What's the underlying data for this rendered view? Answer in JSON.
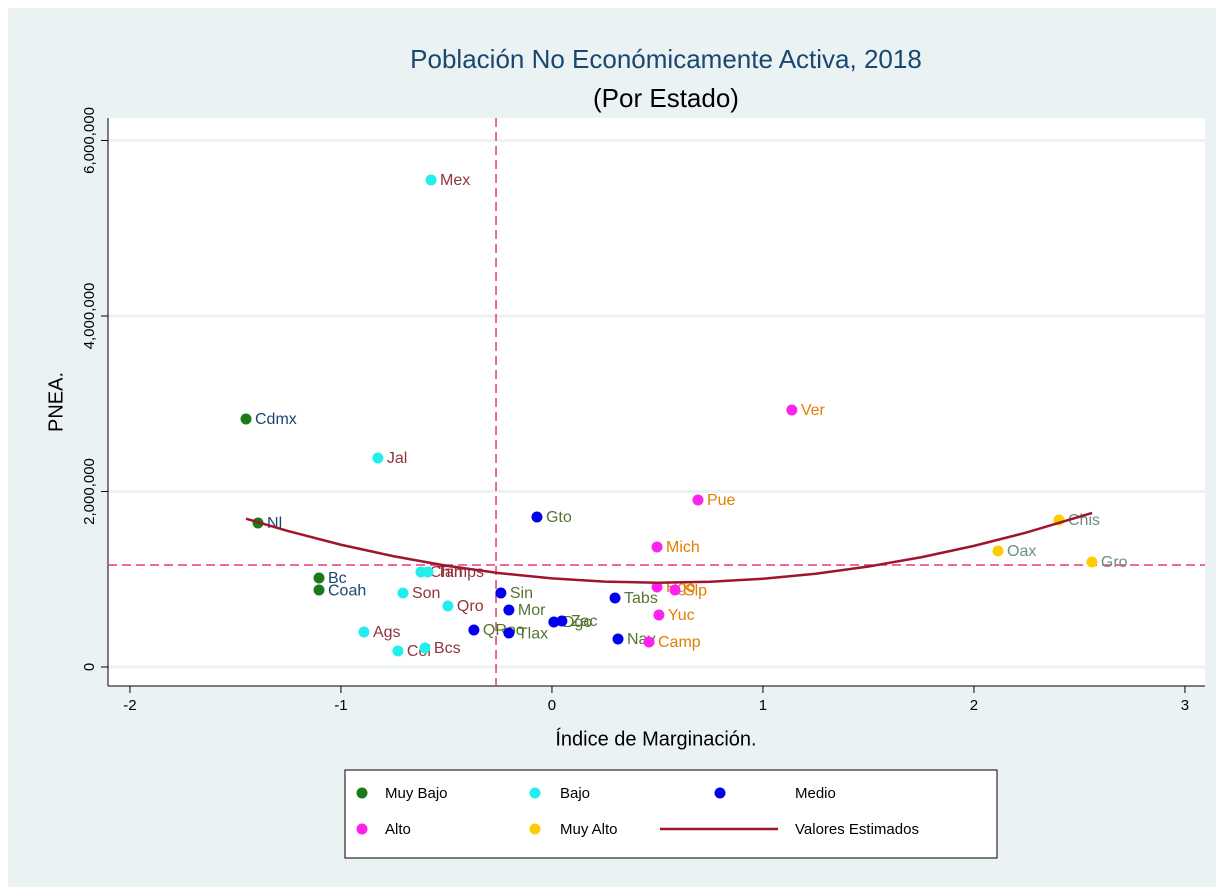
{
  "chart_data": {
    "type": "scatter",
    "title": "Población No Económicamente Activa, 2018",
    "subtitle": "(Por Estado)",
    "x_label": "Índice de Marginación.",
    "y_label": "PNEA.",
    "xlim": [
      -2.104,
      3.095
    ],
    "ylim": [
      -216500,
      6256000
    ],
    "xticks": [
      -2,
      -1,
      0,
      1,
      2,
      3
    ],
    "yticks": [
      0,
      {
        "value": 2000000,
        "label": "2,000,000"
      },
      {
        "value": 4000000,
        "label": "4,000,000"
      },
      {
        "value": 6000000,
        "label": "6,000,000"
      }
    ],
    "grid": true,
    "reference_lines": {
      "x": -0.265,
      "y": 1162000,
      "color": "#e8397a"
    },
    "series": [
      {
        "name": "Muy Bajo",
        "color": "#1a7a1a",
        "label_color": "#1a476f",
        "x": [
          -1.45,
          -1.393,
          -1.104,
          -1.104
        ],
        "values": [
          2826000,
          1641000,
          1014000,
          877000
        ],
        "labels": [
          "Cdmx",
          "Nl",
          "Bc",
          "Coah"
        ]
      },
      {
        "name": "Bajo",
        "color": "#22eeee",
        "label_color": "#90353b",
        "x": [
          -0.573,
          -0.825,
          -0.621,
          -0.588,
          -0.706,
          -0.493,
          -0.891,
          -0.73,
          -0.602
        ],
        "values": [
          5550000,
          2382000,
          1083000,
          1083000,
          843000,
          695000,
          399000,
          182000,
          217000
        ],
        "labels": [
          "Mex",
          "Jal",
          "Chih",
          "Tamps",
          "Son",
          "Qro",
          "Ags",
          "Col",
          "Bcs"
        ]
      },
      {
        "name": "Medio",
        "color": "#0000ee",
        "label_color": "#55752f",
        "x": [
          -0.071,
          -0.242,
          -0.204,
          -0.37,
          -0.204,
          0.009,
          0.047,
          0.299,
          0.313
        ],
        "values": [
          1709000,
          843000,
          650000,
          422000,
          387000,
          513000,
          524000,
          786000,
          319000
        ],
        "labels": [
          "Gto",
          "Sin",
          "Mor",
          "QRoo",
          "Tlax",
          "Dgo",
          "Zac",
          "Tabs",
          "Nay"
        ]
      },
      {
        "name": "Alto",
        "color": "#ff22ee",
        "label_color": "#e37e00",
        "x": [
          1.137,
          0.692,
          0.498,
          0.498,
          0.583,
          0.507,
          0.46
        ],
        "values": [
          2929000,
          1903000,
          1368000,
          912000,
          877000,
          593000,
          285000
        ],
        "labels": [
          "Ver",
          "Pue",
          "Mich",
          "Hgo",
          "Slp",
          "Yuc",
          "Camp"
        ]
      },
      {
        "name": "Muy Alto",
        "color": "#ffcc00",
        "label_color": "#6e8e84",
        "x": [
          2.403,
          2.114,
          2.559
        ],
        "values": [
          1675000,
          1322000,
          1197000
        ],
        "labels": [
          "Chis",
          "Oax",
          "Gro"
        ]
      },
      {
        "name": "Valores Estimados",
        "type": "line",
        "color": "#a0152e",
        "x": [
          -1.45,
          -1.25,
          -1.0,
          -0.75,
          -0.5,
          -0.25,
          0,
          0.25,
          0.5,
          0.75,
          1.0,
          1.25,
          1.5,
          1.75,
          2.0,
          2.25,
          2.56
        ],
        "values": [
          1690000,
          1549000,
          1393000,
          1262000,
          1154000,
          1070000,
          1010000,
          973000,
          960000,
          971000,
          1005000,
          1063000,
          1145000,
          1251000,
          1380000,
          1533000,
          1755000
        ]
      }
    ]
  }
}
